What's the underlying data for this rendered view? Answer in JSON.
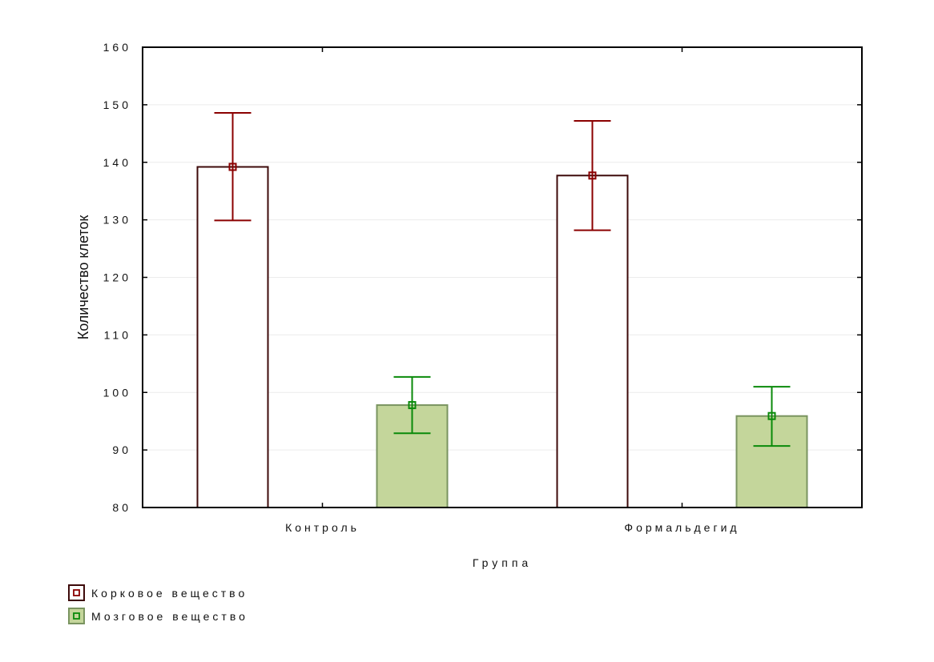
{
  "chart_data": {
    "type": "bar",
    "title": "",
    "xlabel": "Группа",
    "ylabel": "Количество клеток",
    "ylim": [
      80,
      160
    ],
    "yticks": [
      80,
      90,
      100,
      110,
      120,
      130,
      140,
      150,
      160
    ],
    "categories": [
      "Контроль",
      "Формальдегид"
    ],
    "grid": true,
    "legend_position": "bottom-left",
    "series": [
      {
        "name": "Корковое вещество",
        "values": [
          139.2,
          137.7
        ],
        "err_low": [
          129.9,
          128.2
        ],
        "err_high": [
          148.6,
          147.2
        ],
        "fill": "#ffffff",
        "stroke": "#3d0a0a",
        "error_color": "#8b0000"
      },
      {
        "name": "Мозговое вещество",
        "values": [
          97.8,
          95.9
        ],
        "err_low": [
          92.9,
          90.7
        ],
        "err_high": [
          102.7,
          101.0
        ],
        "fill": "#c4d69b",
        "stroke": "#7a9460",
        "error_color": "#0a8a0a"
      }
    ]
  }
}
